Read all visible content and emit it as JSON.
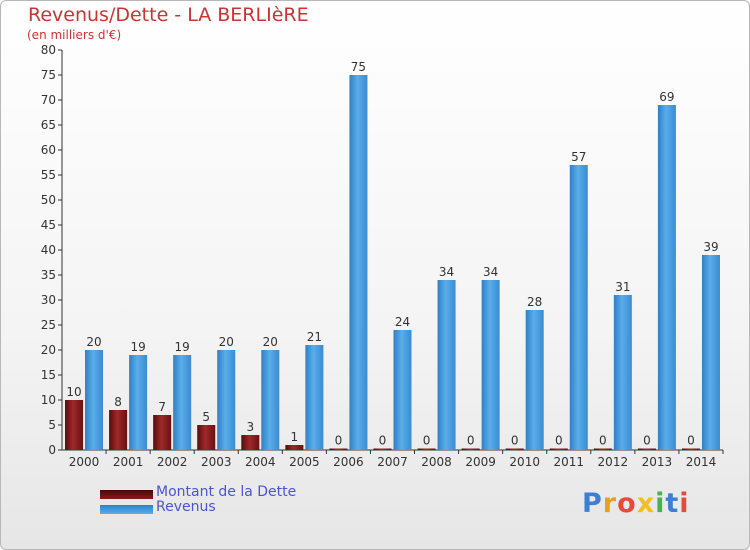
{
  "header": {
    "title": "Revenus/Dette - LA BERLIèRE",
    "subtitle": "(en milliers d'€)"
  },
  "chart_data": {
    "type": "bar",
    "title": "Revenus/Dette - LA BERLIèRE",
    "ylabel": "(en milliers d'€)",
    "xlabel": "",
    "ylim": [
      0,
      80
    ],
    "ytick_step": 5,
    "grid": false,
    "legend_position": "bottom-left",
    "categories": [
      "2000",
      "2001",
      "2002",
      "2003",
      "2004",
      "2005",
      "2006",
      "2007",
      "2008",
      "2009",
      "2010",
      "2011",
      "2012",
      "2013",
      "2014"
    ],
    "series": [
      {
        "name": "Montant de la Dette",
        "color": "#8b1a1a",
        "values": [
          10,
          8,
          7,
          5,
          3,
          1,
          0,
          0,
          0,
          0,
          0,
          0,
          0,
          0,
          0
        ]
      },
      {
        "name": "Revenus",
        "color": "#3d95db",
        "values": [
          20,
          19,
          19,
          20,
          20,
          21,
          75,
          24,
          34,
          34,
          28,
          57,
          31,
          69,
          39
        ]
      }
    ]
  },
  "legend": {
    "items": [
      {
        "label": "Montant de la Dette",
        "color": "#6b0f0f"
      },
      {
        "label": "Revenus",
        "color": "#3d95db"
      }
    ]
  },
  "logo": {
    "letters": [
      "P",
      "r",
      "o",
      "x",
      "i",
      "t",
      "i"
    ],
    "colors": [
      "#3d7fd6",
      "#e8a020",
      "#e84a3a",
      "#f0c020",
      "#3fb54a",
      "#3d7fd6",
      "#e84a3a"
    ]
  }
}
